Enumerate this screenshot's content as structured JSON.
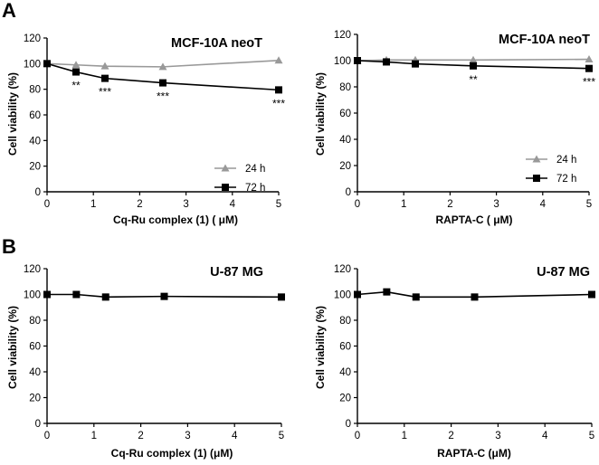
{
  "panels": [
    {
      "letter": "A"
    },
    {
      "letter": "B"
    }
  ],
  "chart_data": [
    {
      "type": "line",
      "panel": "A",
      "title": "MCF-10A neoT",
      "xlabel": "Cq-Ru complex (1) ( μM)",
      "ylabel": "Cell viability (%)",
      "xlim": [
        0,
        5
      ],
      "ylim": [
        0,
        120
      ],
      "xticks": [
        "0",
        "1",
        "2",
        "3",
        "4",
        "5"
      ],
      "yticks": [
        "0",
        "20",
        "40",
        "60",
        "80",
        "100",
        "120"
      ],
      "legend_position": "lower-right",
      "series": [
        {
          "name": "24 h",
          "marker": "triangle",
          "color": "#999999",
          "x": [
            0,
            0.625,
            1.25,
            2.5,
            5
          ],
          "y": [
            100,
            99,
            98,
            97.5,
            102.5
          ],
          "significance": []
        },
        {
          "name": "72 h",
          "marker": "square",
          "color": "#000000",
          "x": [
            0,
            0.625,
            1.25,
            2.5,
            5
          ],
          "y": [
            100,
            93.5,
            88.5,
            85,
            79.5
          ],
          "significance": [
            {
              "x": 0.625,
              "label": "**"
            },
            {
              "x": 1.25,
              "label": "***"
            },
            {
              "x": 2.5,
              "label": "***"
            },
            {
              "x": 5,
              "label": "***"
            }
          ]
        }
      ]
    },
    {
      "type": "line",
      "panel": "A",
      "title": "MCF-10A neoT",
      "xlabel": "RAPTA-C ( μM)",
      "ylabel": "Cell viability (%)",
      "xlim": [
        0,
        5
      ],
      "ylim": [
        0,
        120
      ],
      "xticks": [
        "0",
        "1",
        "2",
        "3",
        "4",
        "5"
      ],
      "yticks": [
        "0",
        "20",
        "40",
        "60",
        "80",
        "100",
        "120"
      ],
      "legend_position": "lower-right",
      "series": [
        {
          "name": "24 h",
          "marker": "triangle",
          "color": "#999999",
          "x": [
            0,
            0.625,
            1.25,
            2.5,
            5
          ],
          "y": [
            100,
            100.5,
            100.5,
            100.5,
            101
          ],
          "significance": []
        },
        {
          "name": "72 h",
          "marker": "square",
          "color": "#000000",
          "x": [
            0,
            0.625,
            1.25,
            2.5,
            5
          ],
          "y": [
            100,
            99,
            97.5,
            96,
            94
          ],
          "significance": [
            {
              "x": 2.5,
              "label": "**"
            },
            {
              "x": 5,
              "label": "***"
            }
          ]
        }
      ]
    },
    {
      "type": "line",
      "panel": "B",
      "title": "U-87 MG",
      "xlabel": "Cq-Ru complex (1) (μM)",
      "ylabel": "Cell viability (%)",
      "xlim": [
        0,
        5
      ],
      "ylim": [
        0,
        120
      ],
      "xticks": [
        "0",
        "1",
        "2",
        "3",
        "4",
        "5"
      ],
      "yticks": [
        "0",
        "20",
        "40",
        "60",
        "80",
        "100",
        "120"
      ],
      "legend_position": "none",
      "series": [
        {
          "name": "",
          "marker": "square",
          "color": "#000000",
          "x": [
            0,
            0.625,
            1.25,
            2.5,
            5
          ],
          "y": [
            100,
            100,
            98,
            98.5,
            98
          ],
          "significance": []
        }
      ]
    },
    {
      "type": "line",
      "panel": "B",
      "title": "U-87 MG",
      "xlabel": "RAPTA-C (μM)",
      "ylabel": "Cell viability (%)",
      "xlim": [
        0,
        5
      ],
      "ylim": [
        0,
        120
      ],
      "xticks": [
        "0",
        "1",
        "2",
        "3",
        "4",
        "5"
      ],
      "yticks": [
        "0",
        "20",
        "40",
        "60",
        "80",
        "100",
        "120"
      ],
      "legend_position": "none",
      "series": [
        {
          "name": "",
          "marker": "square",
          "color": "#000000",
          "x": [
            0,
            0.625,
            1.25,
            2.5,
            5
          ],
          "y": [
            100,
            102,
            98,
            98,
            100
          ],
          "significance": []
        }
      ]
    }
  ]
}
